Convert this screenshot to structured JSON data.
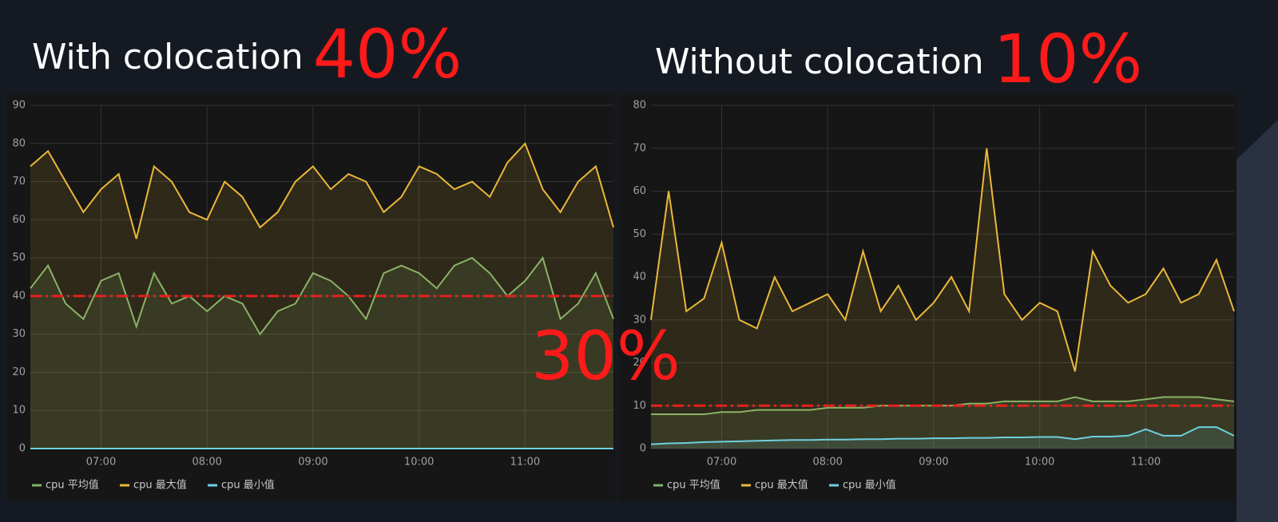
{
  "chart_data": [
    {
      "type": "line",
      "title": "With colocation",
      "headline": "40%",
      "x": [
        "06:20",
        "06:30",
        "06:40",
        "06:50",
        "07:00",
        "07:10",
        "07:20",
        "07:30",
        "07:40",
        "07:50",
        "08:00",
        "08:10",
        "08:20",
        "08:30",
        "08:40",
        "08:50",
        "09:00",
        "09:10",
        "09:20",
        "09:30",
        "09:40",
        "09:50",
        "10:00",
        "10:10",
        "10:20",
        "10:30",
        "10:40",
        "10:50",
        "11:00",
        "11:10",
        "11:20",
        "11:30",
        "11:40",
        "11:50"
      ],
      "xlim": [
        "06:20",
        "11:50"
      ],
      "xticks": [
        "07:00",
        "08:00",
        "09:00",
        "10:00",
        "11:00"
      ],
      "ylim": [
        0,
        90
      ],
      "yticks": [
        0,
        10,
        20,
        30,
        40,
        50,
        60,
        70,
        80,
        90
      ],
      "grid": true,
      "reference_line": 40,
      "reference_color": "#e8201c",
      "series": [
        {
          "name": "cpu 平均值",
          "color": "#7eb26d",
          "values": [
            42,
            48,
            38,
            34,
            44,
            46,
            32,
            46,
            38,
            40,
            36,
            40,
            38,
            30,
            36,
            38,
            46,
            44,
            40,
            34,
            46,
            48,
            46,
            42,
            48,
            50,
            46,
            40,
            44,
            50,
            34,
            38,
            46,
            34
          ]
        },
        {
          "name": "cpu 最大值",
          "color": "#eab839",
          "values": [
            74,
            78,
            70,
            62,
            68,
            72,
            55,
            74,
            70,
            62,
            60,
            70,
            66,
            58,
            62,
            70,
            74,
            68,
            72,
            70,
            62,
            66,
            74,
            72,
            68,
            70,
            66,
            75,
            80,
            68,
            62,
            70,
            74,
            58
          ]
        },
        {
          "name": "cpu 最小值",
          "color": "#6ed0e0",
          "values": [
            0,
            0,
            0,
            0,
            0,
            0,
            0,
            0,
            0,
            0,
            0,
            0,
            0,
            0,
            0,
            0,
            0,
            0,
            0,
            0,
            0,
            0,
            0,
            0,
            0,
            0,
            0,
            0,
            0,
            0,
            0,
            0,
            0,
            0
          ]
        }
      ]
    },
    {
      "type": "line",
      "title": "Without colocation",
      "headline": "10%",
      "x": [
        "06:20",
        "06:30",
        "06:40",
        "06:50",
        "07:00",
        "07:10",
        "07:20",
        "07:30",
        "07:40",
        "07:50",
        "08:00",
        "08:10",
        "08:20",
        "08:30",
        "08:40",
        "08:50",
        "09:00",
        "09:10",
        "09:20",
        "09:30",
        "09:40",
        "09:50",
        "10:00",
        "10:10",
        "10:20",
        "10:30",
        "10:40",
        "10:50",
        "11:00",
        "11:10",
        "11:20",
        "11:30",
        "11:40",
        "11:50"
      ],
      "xlim": [
        "06:20",
        "11:50"
      ],
      "xticks": [
        "07:00",
        "08:00",
        "09:00",
        "10:00",
        "11:00"
      ],
      "ylim": [
        0,
        80
      ],
      "yticks": [
        0,
        10,
        20,
        30,
        40,
        50,
        60,
        70,
        80
      ],
      "grid": true,
      "reference_line": 10,
      "reference_color": "#e8201c",
      "series": [
        {
          "name": "cpu 平均值",
          "color": "#7eb26d",
          "values": [
            8,
            8,
            8,
            8,
            8.5,
            8.5,
            9,
            9,
            9,
            9,
            9.5,
            9.5,
            9.5,
            10,
            10,
            10,
            10,
            10,
            10.5,
            10.5,
            11,
            11,
            11,
            11,
            12,
            11,
            11,
            11,
            11.5,
            12,
            12,
            12,
            11.5,
            11
          ]
        },
        {
          "name": "cpu 最大值",
          "color": "#eab839",
          "values": [
            30,
            60,
            32,
            35,
            48,
            30,
            28,
            40,
            32,
            34,
            36,
            30,
            46,
            32,
            38,
            30,
            34,
            40,
            32,
            70,
            36,
            30,
            34,
            32,
            18,
            46,
            38,
            34,
            36,
            42,
            34,
            36,
            44,
            32
          ]
        },
        {
          "name": "cpu 最小值",
          "color": "#6ed0e0",
          "values": [
            1,
            1.2,
            1.3,
            1.5,
            1.6,
            1.7,
            1.8,
            1.9,
            2,
            2,
            2.1,
            2.1,
            2.2,
            2.2,
            2.3,
            2.3,
            2.4,
            2.4,
            2.5,
            2.5,
            2.6,
            2.6,
            2.7,
            2.7,
            2.2,
            2.8,
            2.8,
            3,
            4.5,
            3,
            3,
            5,
            5,
            3
          ]
        }
      ]
    }
  ],
  "annotation": "30%"
}
